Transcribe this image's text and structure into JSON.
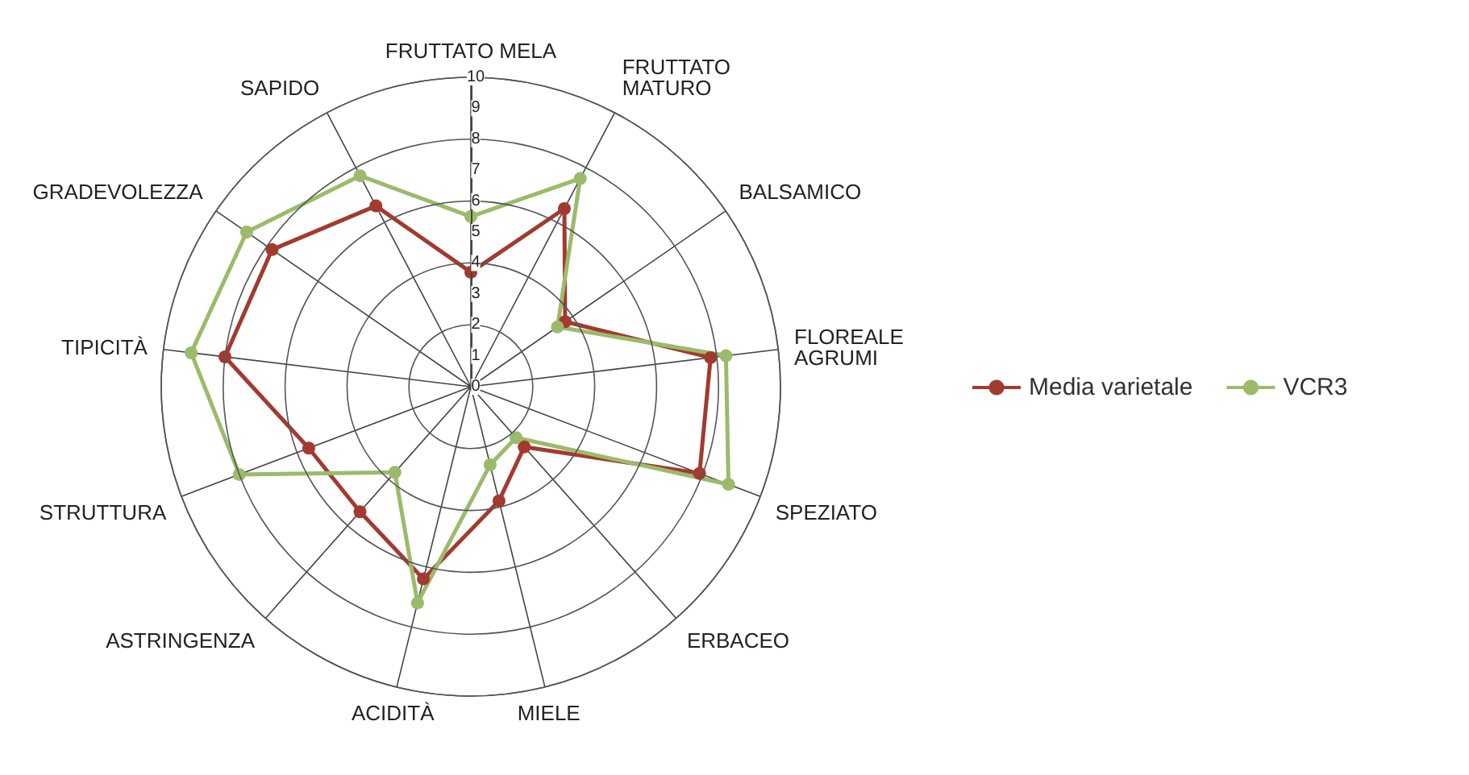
{
  "chart_data": {
    "type": "radar",
    "categories": [
      "FRUTTATO MELA",
      "FRUTTATO\nMATURO",
      "BALSAMICO",
      "FLOREALE\nAGRUMI",
      "SPEZIATO",
      "ERBACEO",
      "MIELE",
      "ACIDITÀ",
      "ASTRINGENZA",
      "STRUTTURA",
      "TIPICITÀ",
      "GRADEVOLEZZA",
      "SAPIDO"
    ],
    "series": [
      {
        "name": "Media varietale",
        "color": "#a33a2f",
        "values": [
          3.7,
          6.5,
          3.7,
          7.8,
          7.9,
          2.6,
          3.8,
          6.4,
          5.4,
          5.6,
          8.0,
          7.8,
          6.6
        ]
      },
      {
        "name": "VCR3",
        "color": "#9bbb6a",
        "values": [
          5.5,
          7.6,
          3.4,
          8.3,
          8.9,
          2.2,
          2.6,
          7.2,
          3.7,
          8.0,
          9.1,
          8.8,
          7.7
        ]
      }
    ],
    "ylim": [
      0,
      10
    ],
    "yticks": [
      0,
      1,
      2,
      3,
      4,
      5,
      6,
      7,
      8,
      9,
      10
    ],
    "legend": "right",
    "marker": "circle",
    "line_style": "solid"
  }
}
